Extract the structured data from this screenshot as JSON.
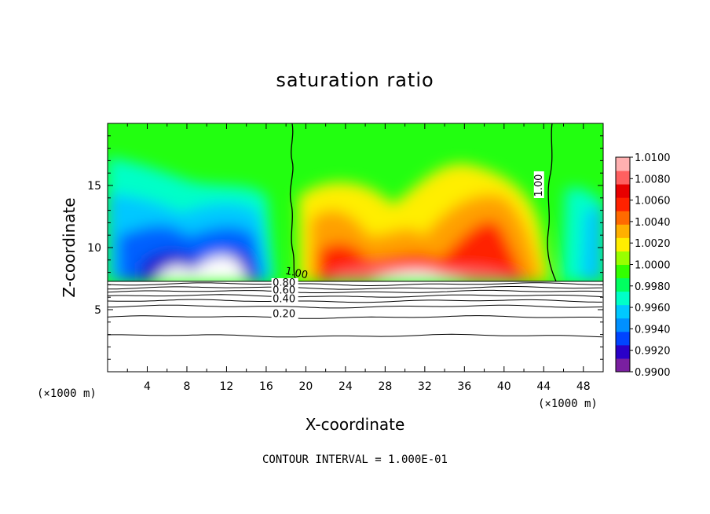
{
  "chart_data": {
    "type": "contour",
    "title": "saturation ratio",
    "xlabel": "X-coordinate",
    "ylabel": "Z-coordinate",
    "x_unit_label": "(×1000 m)",
    "y_unit_label": "(×1000 m)",
    "footnote": "CONTOUR INTERVAL = 1.000E-01",
    "xlim": [
      0,
      50
    ],
    "ylim": [
      0,
      20
    ],
    "x_ticks": [
      4,
      8,
      12,
      16,
      20,
      24,
      28,
      32,
      36,
      40,
      44,
      48
    ],
    "y_ticks": [
      5,
      10,
      15
    ],
    "colorbar": {
      "min": 0.99,
      "max": 1.01,
      "labels": [
        "1.0100",
        "1.0080",
        "1.0060",
        "1.0040",
        "1.0020",
        "1.0000",
        "0.9980",
        "0.9960",
        "0.9940",
        "0.9920",
        "0.9900"
      ],
      "colors": [
        "#7a1fa0",
        "#2a00c8",
        "#0044ff",
        "#0090ff",
        "#00c8ff",
        "#00ffc8",
        "#00ff60",
        "#33ff00",
        "#99ff00",
        "#ffee00",
        "#ffb000",
        "#ff6a00",
        "#ff2200",
        "#e80000",
        "#ff6060",
        "#ffb0b0"
      ]
    },
    "contour_labels": [
      {
        "label": "1.00",
        "x": 19.0,
        "z": 7.7
      },
      {
        "label": "1.00",
        "x": 43.8,
        "z": 15.0
      },
      {
        "label": "0.80",
        "x": 17.8,
        "z": 6.9
      },
      {
        "label": "0.60",
        "x": 17.8,
        "z": 6.3
      },
      {
        "label": "0.40",
        "x": 17.8,
        "z": 5.6
      },
      {
        "label": "0.20",
        "x": 17.8,
        "z": 4.4
      }
    ],
    "contour_levels_below": [
      0.2,
      0.4,
      0.6,
      0.8
    ],
    "contour_1_00_left_x": 18.5,
    "contour_1_00_right_x": 44.8
  }
}
